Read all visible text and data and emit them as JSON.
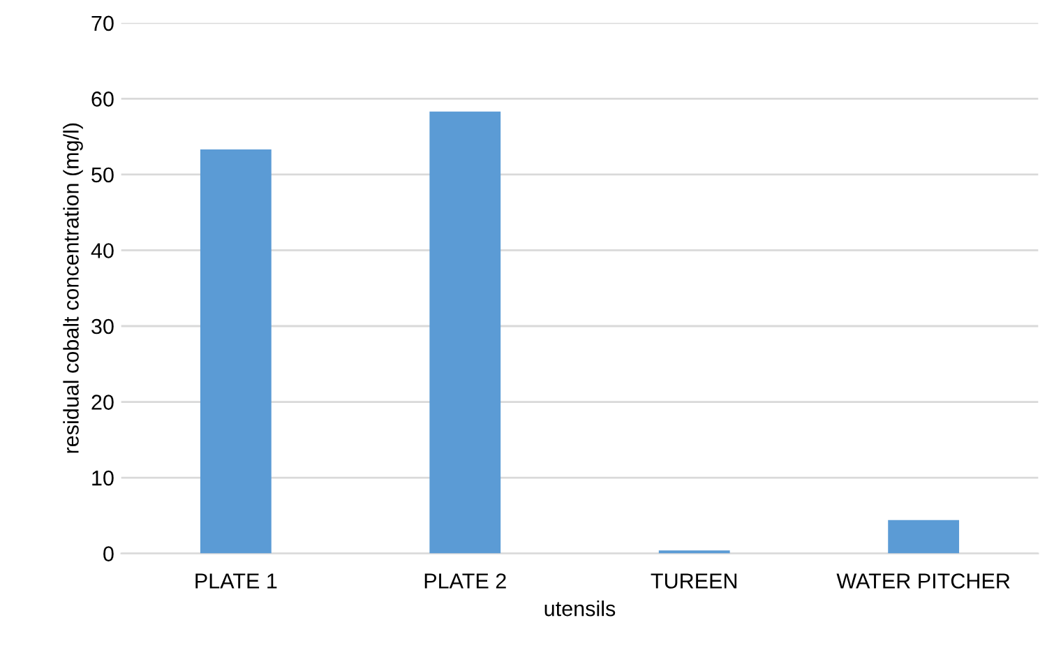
{
  "chart_data": {
    "type": "bar",
    "xlabel": "utensils",
    "ylabel": "residual cobalt concentration (mg/l)",
    "categories": [
      "PLATE 1",
      "PLATE 2",
      "TUREEN",
      "WATER PITCHER"
    ],
    "values": [
      53.3,
      58.3,
      0.4,
      4.4
    ],
    "color": "#5b9bd5",
    "ylim": [
      0,
      70
    ],
    "yticks": [
      0,
      10,
      20,
      30,
      40,
      50,
      60,
      70
    ],
    "grid": "y"
  }
}
